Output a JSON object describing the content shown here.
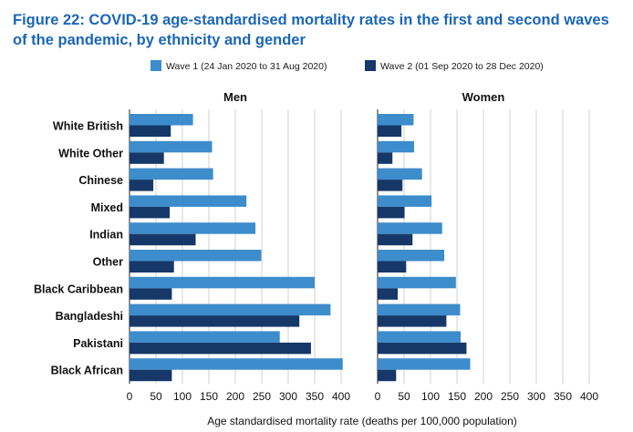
{
  "chart_data": {
    "type": "bar",
    "orientation": "horizontal",
    "title_lines": [
      "Figure 22: COVID-19 age-standardised mortality rates in the first and second waves",
      "of the pandemic, by ethnicity and gender"
    ],
    "xlabel": "Age standardised mortality rate (deaths per 100,000 population)",
    "xlim": [
      0,
      410
    ],
    "xticks": [
      0,
      50,
      100,
      150,
      200,
      250,
      300,
      350,
      400
    ],
    "grid": true,
    "legend_position": "top",
    "categories": [
      "White British",
      "White Other",
      "Chinese",
      "Mixed",
      "Indian",
      "Other",
      "Black Caribbean",
      "Bangladeshi",
      "Pakistani",
      "Black African"
    ],
    "series_names": [
      "Wave 1 (24 Jan 2020 to 31 Aug 2020)",
      "Wave 2 (01 Sep 2020 to 28 Dec 2020)"
    ],
    "series_colors": [
      "#3d8ccc",
      "#163868"
    ],
    "panels": [
      {
        "name": "Men",
        "series": [
          {
            "name": "Wave 1 (24 Jan 2020 to 31 Aug 2020)",
            "values": [
              120,
              156,
              158,
              221,
              238,
              249,
              350,
              380,
              284,
              403
            ]
          },
          {
            "name": "Wave 2 (01 Sep 2020 to 28 Dec 2020)",
            "values": [
              78,
              65,
              45,
              76,
              125,
              84,
              80,
              321,
              343,
              80
            ]
          }
        ]
      },
      {
        "name": "Women",
        "series": [
          {
            "name": "Wave 1 (24 Jan 2020 to 31 Aug 2020)",
            "values": [
              68,
              69,
              84,
              102,
              122,
              126,
              148,
              156,
              157,
              175
            ]
          },
          {
            "name": "Wave 2 (01 Sep 2020 to 28 Dec 2020)",
            "values": [
              45,
              28,
              47,
              51,
              66,
              54,
              38,
              130,
              168,
              35
            ]
          }
        ]
      }
    ]
  }
}
